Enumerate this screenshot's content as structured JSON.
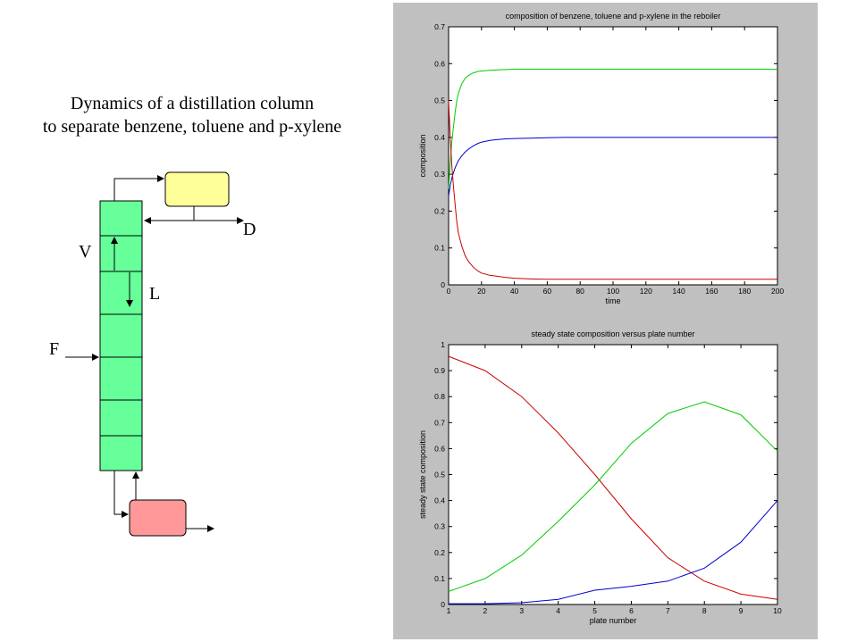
{
  "slide": {
    "title_line1": "Dynamics of a distillation column",
    "title_line2": "to separate benzene, toluene and p-xylene"
  },
  "diagram": {
    "labels": {
      "V": "V",
      "L": "L",
      "F": "F",
      "D": "D"
    },
    "colors": {
      "column": "#66ff99",
      "condenser": "#ffff99",
      "reboiler": "#ff9999"
    }
  },
  "chart_data": [
    {
      "type": "line",
      "title": "composition of benzene, toluene and p-xylene in the reboiler",
      "xlabel": "time",
      "ylabel": "composition",
      "xlim": [
        0,
        200
      ],
      "ylim": [
        0,
        0.7
      ],
      "xticks": [
        0,
        20,
        40,
        60,
        80,
        100,
        120,
        140,
        160,
        180,
        200
      ],
      "yticks": [
        0,
        0.1,
        0.2,
        0.3,
        0.4,
        0.5,
        0.6,
        0.7
      ],
      "grid": false,
      "x": [
        0,
        1,
        2,
        3,
        4,
        5,
        6,
        8,
        10,
        12,
        15,
        18,
        20,
        25,
        30,
        35,
        40,
        50,
        60,
        70,
        80,
        100,
        120,
        140,
        160,
        180,
        200
      ],
      "series": [
        {
          "color": "#00cc00",
          "values": [
            0.26,
            0.33,
            0.39,
            0.43,
            0.47,
            0.5,
            0.52,
            0.545,
            0.56,
            0.568,
            0.575,
            0.579,
            0.58,
            0.582,
            0.583,
            0.584,
            0.585,
            0.585,
            0.585,
            0.585,
            0.585,
            0.585,
            0.585,
            0.585,
            0.585,
            0.585,
            0.585
          ]
        },
        {
          "color": "#0000cc",
          "values": [
            0.24,
            0.27,
            0.29,
            0.305,
            0.318,
            0.328,
            0.337,
            0.35,
            0.36,
            0.368,
            0.377,
            0.384,
            0.387,
            0.392,
            0.394,
            0.396,
            0.397,
            0.398,
            0.399,
            0.4,
            0.4,
            0.4,
            0.4,
            0.4,
            0.4,
            0.4,
            0.4
          ]
        },
        {
          "color": "#cc0000",
          "values": [
            0.5,
            0.4,
            0.32,
            0.265,
            0.215,
            0.17,
            0.14,
            0.105,
            0.08,
            0.064,
            0.048,
            0.037,
            0.032,
            0.026,
            0.023,
            0.02,
            0.018,
            0.016,
            0.015,
            0.015,
            0.015,
            0.015,
            0.015,
            0.015,
            0.015,
            0.015,
            0.015
          ]
        }
      ]
    },
    {
      "type": "line",
      "title": "steady state composition versus plate number",
      "xlabel": "plate number",
      "ylabel": "steady state composition",
      "xlim": [
        1,
        10
      ],
      "ylim": [
        0,
        1
      ],
      "xticks": [
        1,
        2,
        3,
        4,
        5,
        6,
        7,
        8,
        9,
        10
      ],
      "yticks": [
        0,
        0.1,
        0.2,
        0.3,
        0.4,
        0.5,
        0.6,
        0.7,
        0.8,
        0.9,
        1
      ],
      "grid": false,
      "x": [
        1,
        2,
        3,
        4,
        5,
        6,
        7,
        8,
        9,
        10
      ],
      "series": [
        {
          "color": "#cc0000",
          "values": [
            0.955,
            0.9,
            0.8,
            0.66,
            0.5,
            0.33,
            0.18,
            0.09,
            0.04,
            0.02
          ]
        },
        {
          "color": "#00cc00",
          "values": [
            0.05,
            0.1,
            0.19,
            0.32,
            0.46,
            0.62,
            0.735,
            0.78,
            0.73,
            0.59
          ]
        },
        {
          "color": "#0000cc",
          "values": [
            0.003,
            0.003,
            0.007,
            0.02,
            0.055,
            0.07,
            0.09,
            0.14,
            0.24,
            0.4
          ]
        }
      ]
    }
  ]
}
